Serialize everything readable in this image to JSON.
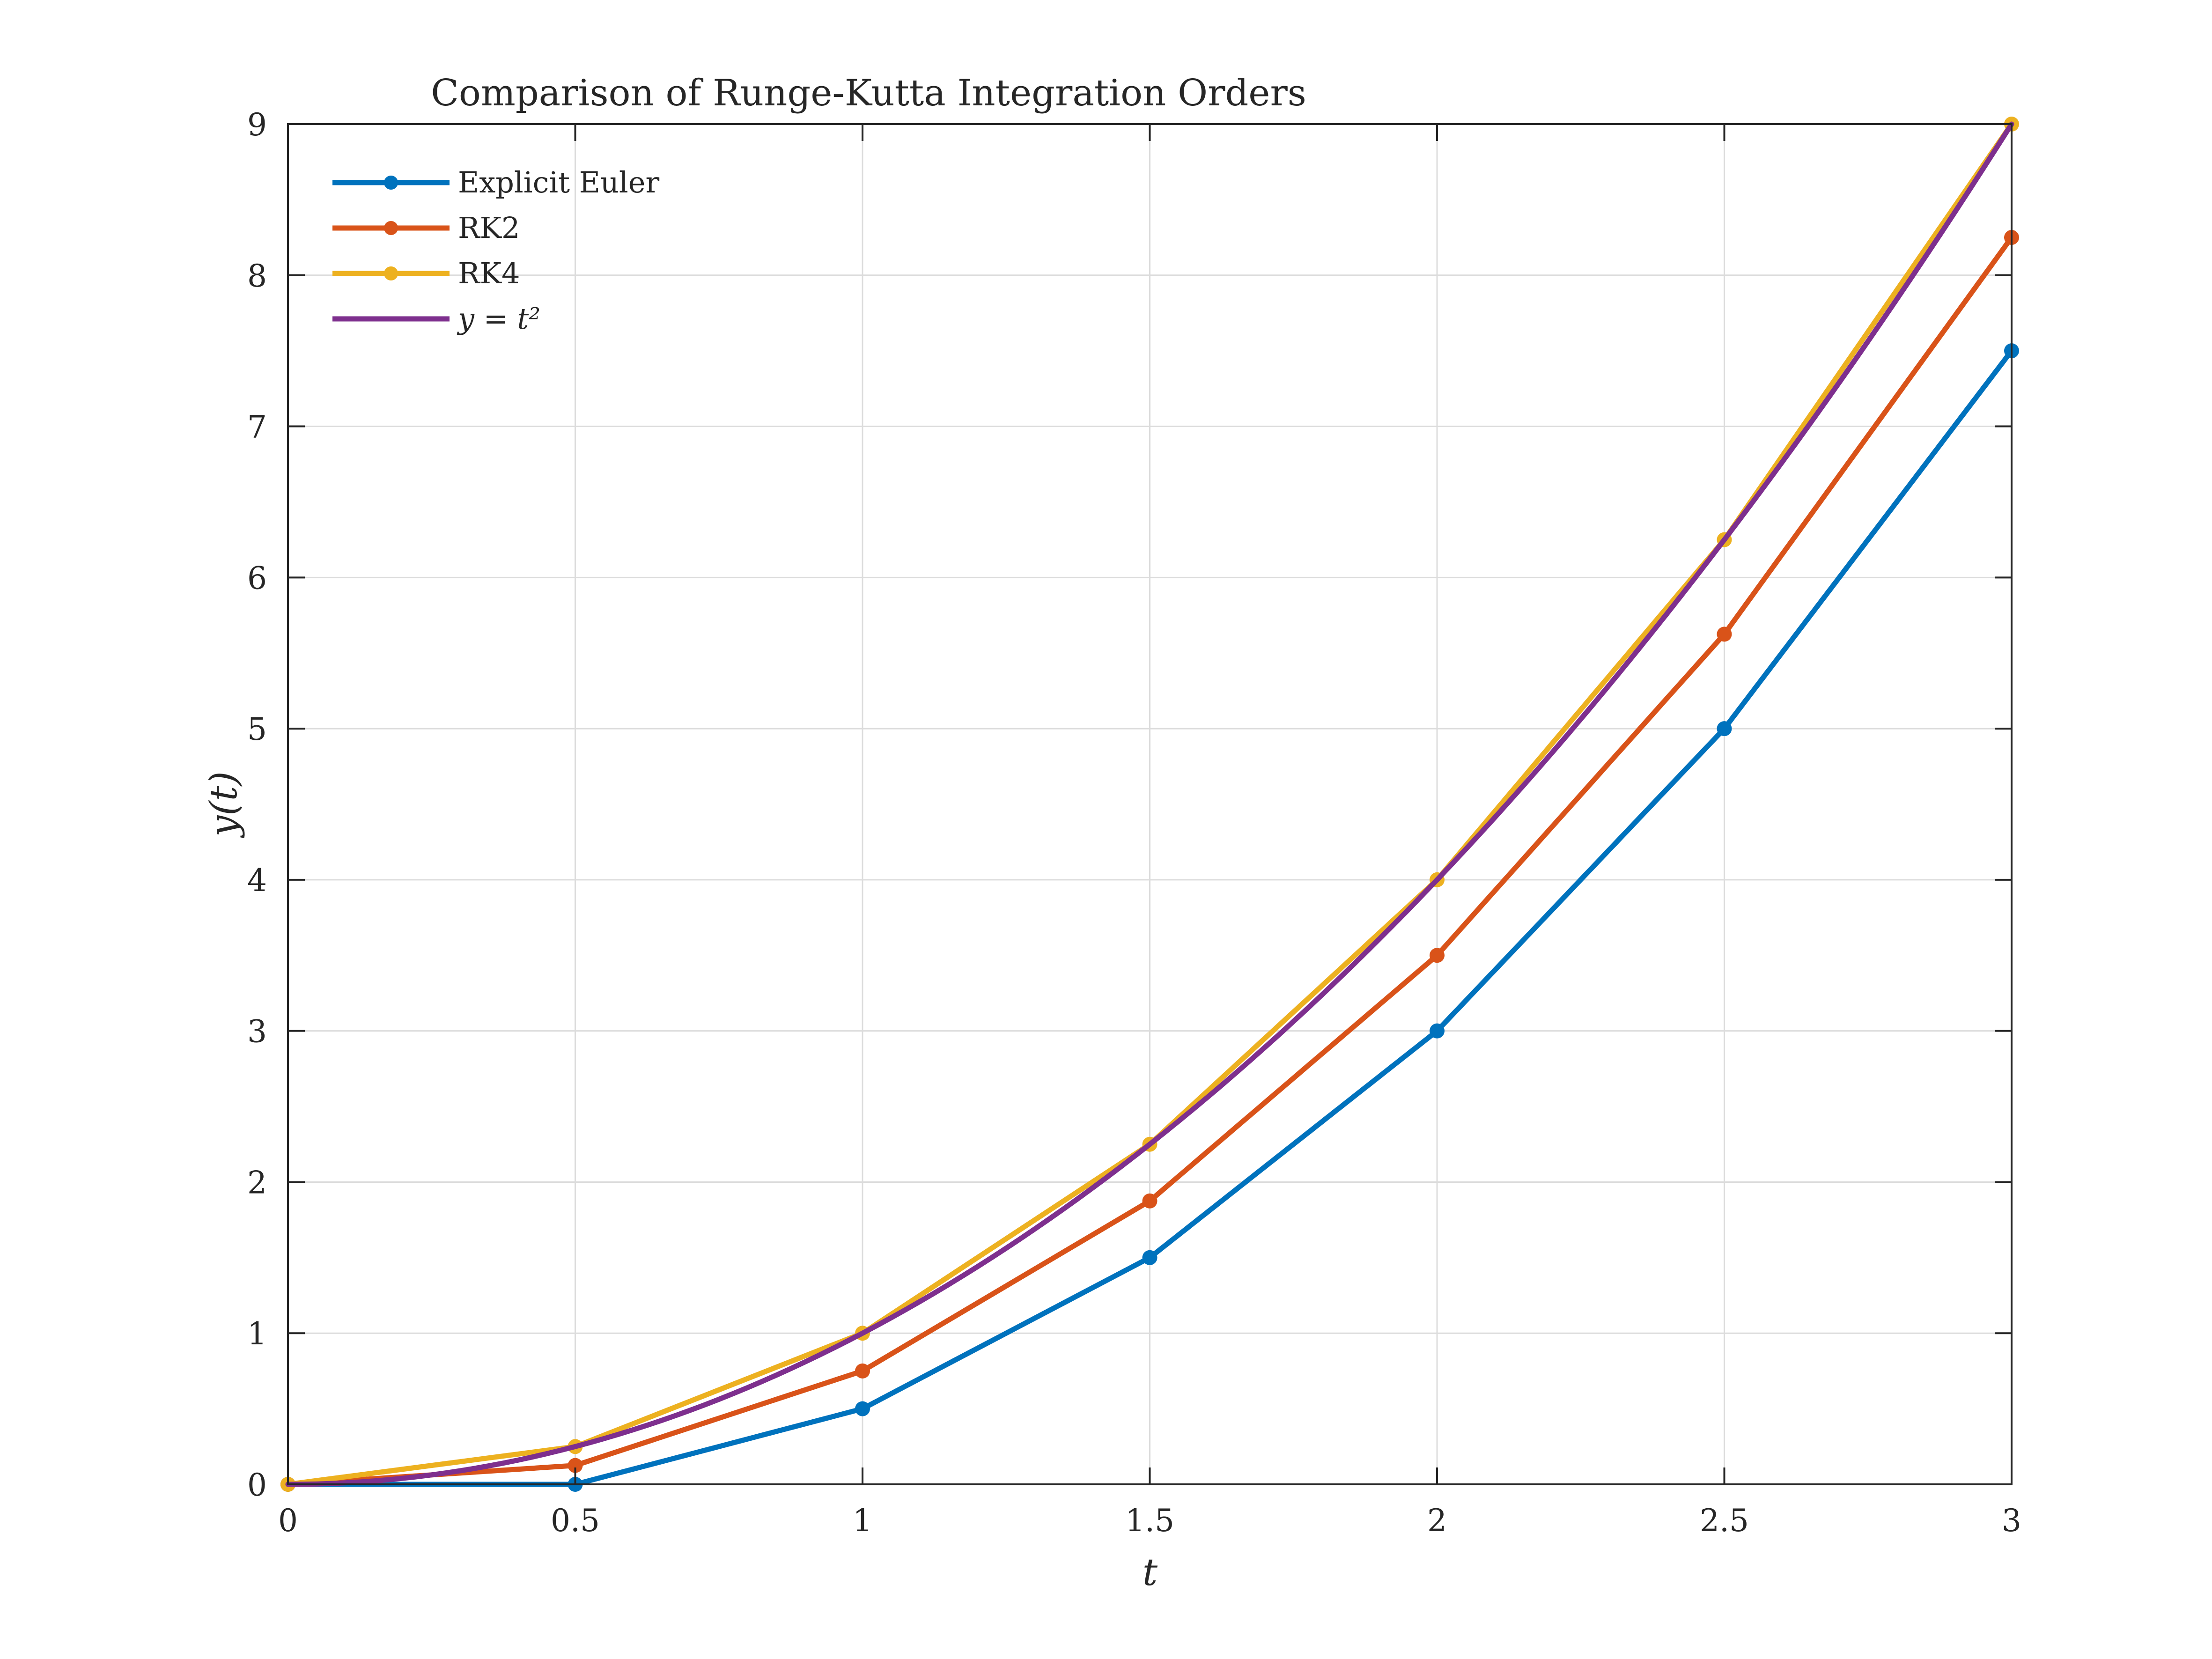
{
  "chart_data": {
    "type": "line",
    "title": "Comparison of Runge-Kutta Integration Orders",
    "xlabel": "t",
    "ylabel": "y(t)",
    "xlim": [
      0,
      3
    ],
    "ylim": [
      0,
      9
    ],
    "xticks": [
      0,
      0.5,
      1,
      1.5,
      2,
      2.5,
      3
    ],
    "xtick_labels": [
      "0",
      "0.5",
      "1",
      "1.5",
      "2",
      "2.5",
      "3"
    ],
    "yticks": [
      0,
      1,
      2,
      3,
      4,
      5,
      6,
      7,
      8,
      9
    ],
    "ytick_labels": [
      "0",
      "1",
      "2",
      "3",
      "4",
      "5",
      "6",
      "7",
      "8",
      "9"
    ],
    "grid": true,
    "legend_position": "top-left",
    "x": [
      0,
      0.5,
      1,
      1.5,
      2,
      2.5,
      3
    ],
    "series": [
      {
        "name": "Explicit Euler",
        "color": "#0072BD",
        "markers": true,
        "values": [
          0,
          0,
          0.5,
          1.5,
          3.0,
          5.0,
          7.5
        ]
      },
      {
        "name": "RK2",
        "color": "#D95319",
        "markers": true,
        "values": [
          0,
          0.125,
          0.75,
          1.875,
          3.5,
          5.625,
          8.25
        ]
      },
      {
        "name": "RK4",
        "color": "#EDB120",
        "markers": true,
        "values": [
          0,
          0.25,
          1.0,
          2.25,
          4.0,
          6.25,
          9.0
        ]
      },
      {
        "name": "y = t²",
        "color": "#7E2F8E",
        "markers": false,
        "values": [
          0,
          0.25,
          1.0,
          2.25,
          4.0,
          6.25,
          9.0
        ],
        "smooth": true
      }
    ]
  }
}
